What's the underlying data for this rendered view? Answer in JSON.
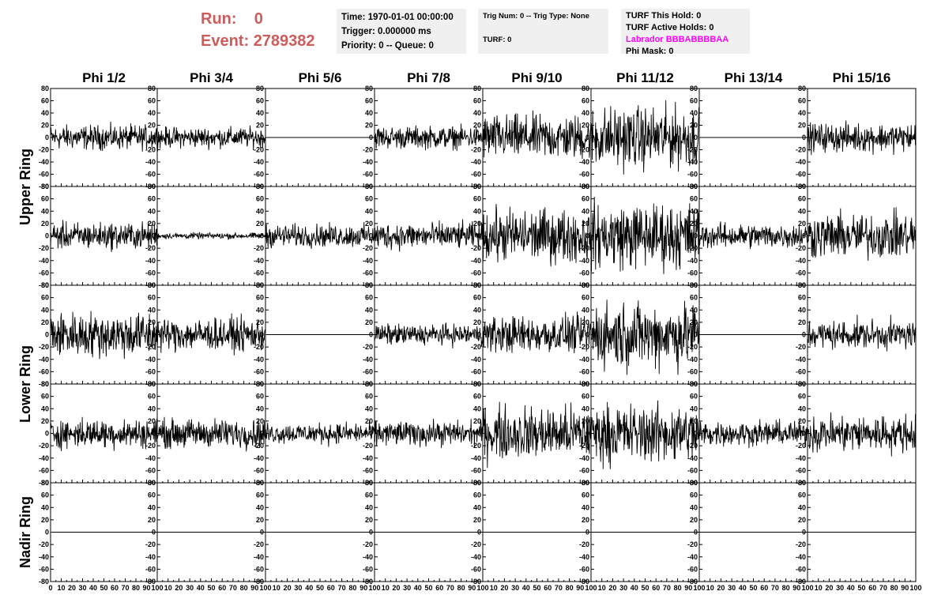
{
  "header": {
    "run_label": "Run:",
    "run_value": "0",
    "event_label": "Event:",
    "event_value": "2789382"
  },
  "time_box": {
    "time": "Time: 1970-01-01 00:00:00",
    "trigger": "Trigger: 0.000000 ms",
    "priority": "Priority: 0 -- Queue: 0"
  },
  "trig_box": {
    "trig": "Trig Num: 0 -- Trig Type: None",
    "turf": "TURF: 0"
  },
  "turf_box": {
    "this_hold": "TURF This Hold: 0",
    "active_holds": "TURF Active Holds: 0",
    "labrador": "Labrador BBBABBBBAA",
    "phi_mask": "Phi Mask: 0",
    "labrador_color": "#ff00ff"
  },
  "colors": {
    "run_text": "#cd5c5c",
    "info_bg": "#f0f0f0",
    "trace": "#000000"
  },
  "chart_data": {
    "type": "line",
    "columns": [
      "Phi 1/2",
      "Phi 3/4",
      "Phi 5/6",
      "Phi 7/8",
      "Phi 9/10",
      "Phi 11/12",
      "Phi 13/14",
      "Phi 15/16"
    ],
    "ring_labels": [
      {
        "label": "Upper Ring",
        "rows": [
          0,
          1
        ]
      },
      {
        "label": "Lower Ring",
        "rows": [
          2,
          3
        ]
      },
      {
        "label": "Nadir Ring",
        "rows": [
          4
        ]
      }
    ],
    "xlim": [
      0,
      100
    ],
    "ylim": [
      -80,
      80
    ],
    "x_ticks": [
      0,
      10,
      20,
      30,
      40,
      50,
      60,
      70,
      80,
      90,
      100
    ],
    "y_ticks": [
      -80,
      -60,
      -40,
      -20,
      0,
      20,
      40,
      60,
      80
    ],
    "samples_per_trace": 260,
    "amplitude": [
      [
        12,
        10,
        0,
        11,
        22,
        30,
        0,
        14
      ],
      [
        13,
        3,
        11,
        13,
        26,
        32,
        12,
        22
      ],
      [
        22,
        16,
        0,
        10,
        18,
        32,
        0,
        14
      ],
      [
        14,
        14,
        10,
        12,
        26,
        28,
        12,
        18
      ],
      [
        0,
        0,
        0,
        0,
        0,
        0,
        0,
        0
      ]
    ]
  }
}
